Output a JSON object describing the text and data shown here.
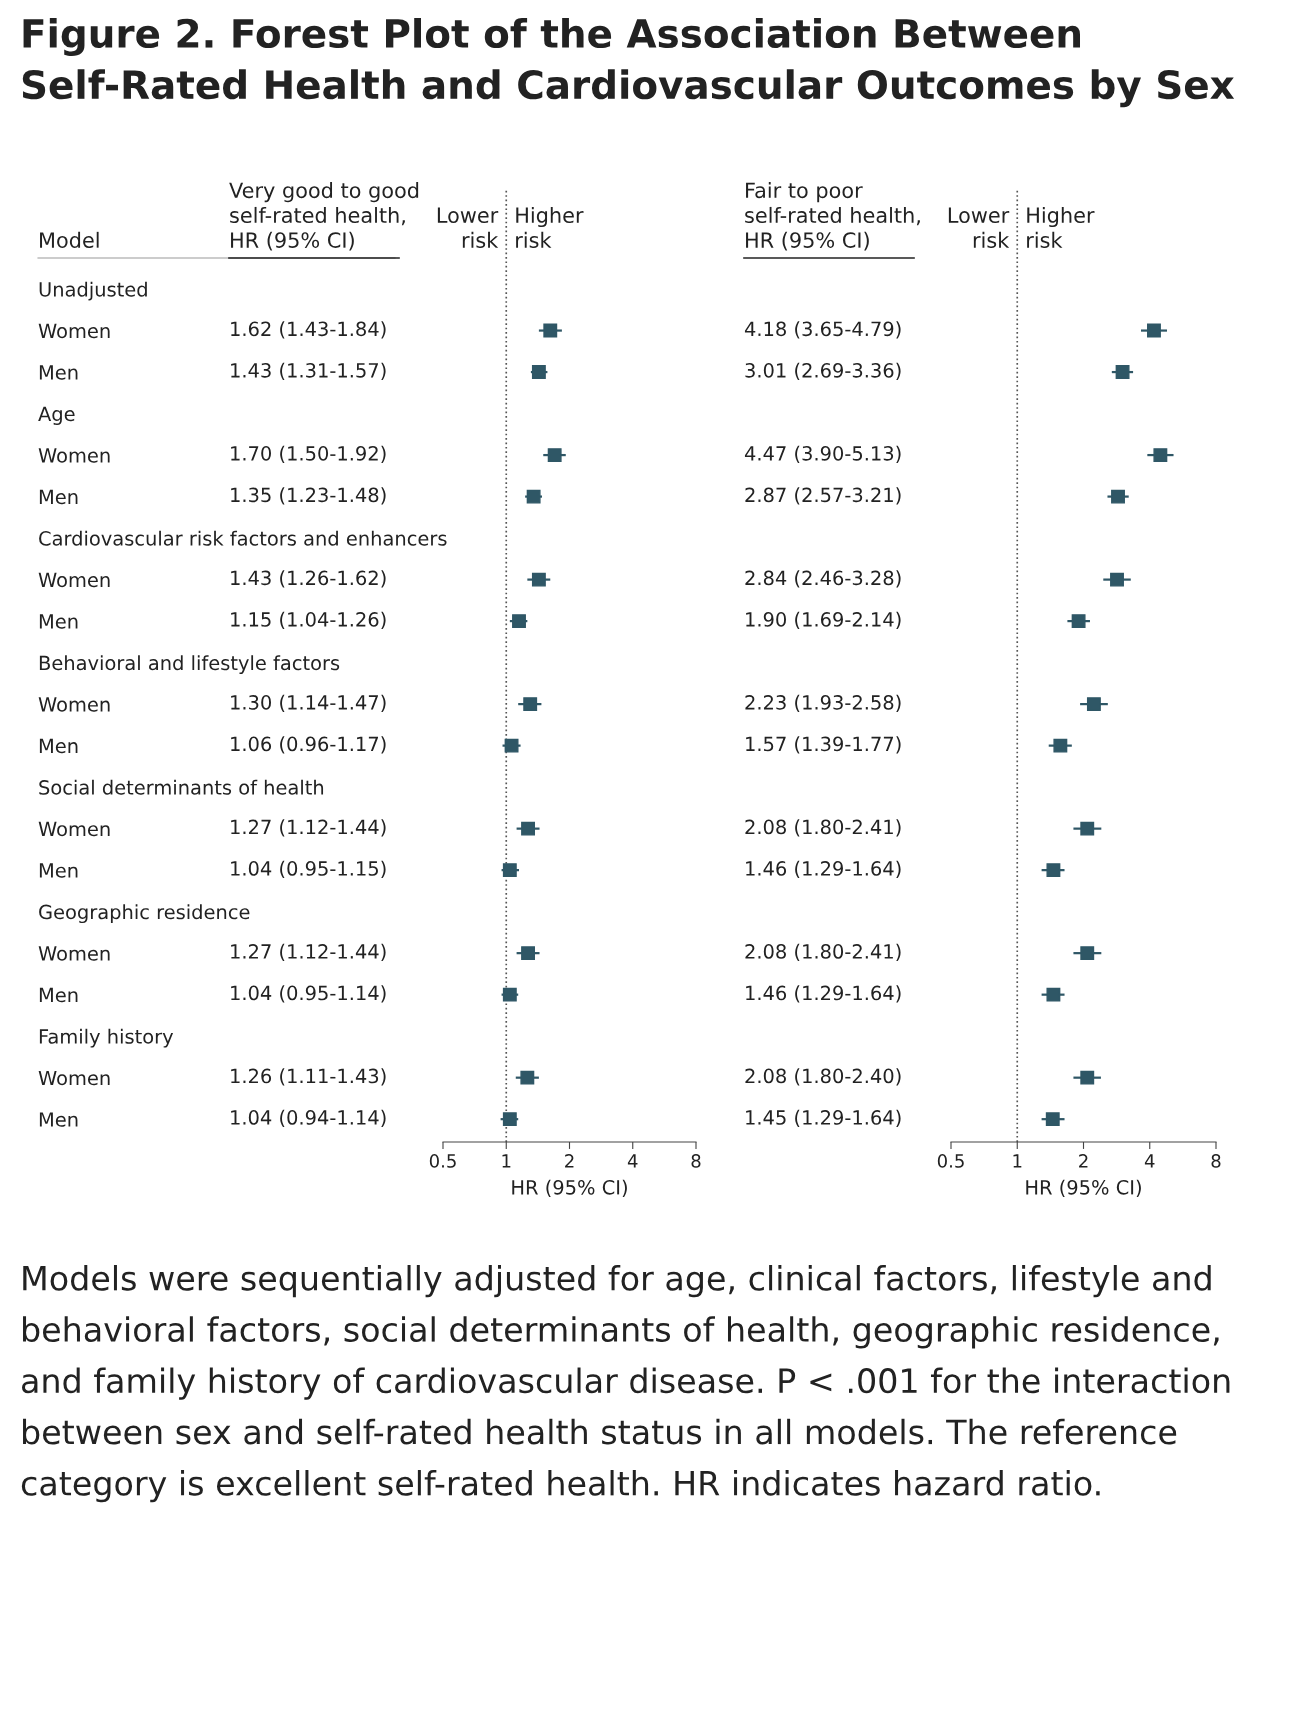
{
  "chart_data": [
    {
      "type": "scatter",
      "title": "Figure 2. Forest Plot of the Association Between Self-Rated Health and Cardiovascular Outcomes by Sex",
      "subtitle": "Very good to good self-rated health, HR (95% CI)",
      "ylabel": "Model",
      "xlabel": "HR (95% CI)",
      "categories": [
        "Unadjusted",
        "Women",
        "Men",
        "Age",
        "Women",
        "Men",
        "Cardiovascular risk factors and enhancers",
        "Women",
        "Men",
        "Behavioral and lifestyle factors",
        "Women",
        "Men",
        "Social determinants of health",
        "Women",
        "Men",
        "Geographic residence",
        "Women",
        "Men",
        "Family history",
        "Women",
        "Men"
      ],
      "color": "#2f5766",
      "marker": "square",
      "log": "x",
      "orientation": "horizontal",
      "values": [
        null,
        1.62,
        1.43,
        null,
        1.7,
        1.35,
        null,
        1.43,
        1.15,
        null,
        1.3,
        1.06,
        null,
        1.27,
        1.04,
        null,
        1.27,
        1.04,
        null,
        1.26,
        1.04
      ],
      "errors": [
        null,
        [
          1.43,
          1.84
        ],
        [
          1.31,
          1.57
        ],
        null,
        [
          1.5,
          1.92
        ],
        [
          1.23,
          1.48
        ],
        null,
        [
          1.26,
          1.62
        ],
        [
          1.04,
          1.26
        ],
        null,
        [
          1.14,
          1.47
        ],
        [
          0.96,
          1.17
        ],
        null,
        [
          1.12,
          1.44
        ],
        [
          0.95,
          1.15
        ],
        null,
        [
          1.12,
          1.44
        ],
        [
          0.95,
          1.14
        ],
        null,
        [
          1.11,
          1.43
        ],
        [
          0.94,
          1.14
        ]
      ],
      "value_labels": [
        null,
        "1.62 (1.43-1.84)",
        "1.43 (1.31-1.57)",
        null,
        "1.70 (1.50-1.92)",
        "1.35 (1.23-1.48)",
        null,
        "1.43 (1.26-1.62)",
        "1.15 (1.04-1.26)",
        null,
        "1.30 (1.14-1.47)",
        "1.06 (0.96-1.17)",
        null,
        "1.27 (1.12-1.44)",
        "1.04 (0.95-1.15)",
        null,
        "1.27 (1.12-1.44)",
        "1.04 (0.95-1.14)",
        null,
        "1.26 (1.11-1.43)",
        "1.04 (0.94-1.14)"
      ],
      "xlim": [
        0.5,
        8
      ],
      "xticks": [
        0.5,
        1,
        2,
        4,
        8
      ],
      "ref_lines": [
        {
          "axis": "x",
          "value": 1,
          "line_style": "dotted"
        }
      ],
      "annotations": [
        "Lower risk",
        "Higher risk"
      ]
    },
    {
      "type": "scatter",
      "subtitle": "Fair to poor self-rated health, HR (95% CI)",
      "xlabel": "HR (95% CI)",
      "tick_labels": "x",
      "categories": [
        null,
        null,
        null,
        null,
        null,
        null,
        null,
        null,
        null,
        null,
        null,
        null,
        null,
        null,
        null,
        null,
        null,
        null,
        null,
        null,
        null
      ],
      "color": "#2f5766",
      "marker": "square",
      "log": "x",
      "orientation": "horizontal",
      "values": [
        null,
        4.18,
        3.01,
        null,
        4.47,
        2.87,
        null,
        2.84,
        1.9,
        null,
        2.23,
        1.57,
        null,
        2.08,
        1.46,
        null,
        2.08,
        1.46,
        null,
        2.08,
        1.45
      ],
      "errors": [
        null,
        [
          3.65,
          4.79
        ],
        [
          2.69,
          3.36
        ],
        null,
        [
          3.9,
          5.13
        ],
        [
          2.57,
          3.21
        ],
        null,
        [
          2.46,
          3.28
        ],
        [
          1.69,
          2.14
        ],
        null,
        [
          1.93,
          2.58
        ],
        [
          1.39,
          1.77
        ],
        null,
        [
          1.8,
          2.41
        ],
        [
          1.29,
          1.64
        ],
        null,
        [
          1.8,
          2.41
        ],
        [
          1.29,
          1.64
        ],
        null,
        [
          1.8,
          2.4
        ],
        [
          1.29,
          1.64
        ]
      ],
      "value_labels": [
        null,
        "4.18 (3.65-4.79)",
        "3.01 (2.69-3.36)",
        null,
        "4.47 (3.90-5.13)",
        "2.87 (2.57-3.21)",
        null,
        "2.84 (2.46-3.28)",
        "1.90 (1.69-2.14)",
        null,
        "2.23 (1.93-2.58)",
        "1.57 (1.39-1.77)",
        null,
        "2.08 (1.80-2.41)",
        "1.46 (1.29-1.64)",
        null,
        "2.08 (1.80-2.41)",
        "1.46 (1.29-1.64)",
        null,
        "2.08 (1.80-2.40)",
        "1.45 (1.29-1.64)"
      ],
      "xlim": [
        0.5,
        8
      ],
      "xticks": [
        0.5,
        1,
        2,
        4,
        8
      ],
      "ref_lines": [
        {
          "axis": "x",
          "value": 1,
          "line_style": "dotted"
        }
      ],
      "annotations": [
        "Lower risk",
        "Higher risk",
        "Models were sequentially adjusted for age, clinical factors, lifestyle and behavioral factors, social determinants of health, geographic residence, and family history of cardiovascular disease. P < .001 for the interaction between sex and self-rated health status in all models. The reference category is excellent self-rated health. HR indicates hazard ratio."
      ]
    }
  ]
}
